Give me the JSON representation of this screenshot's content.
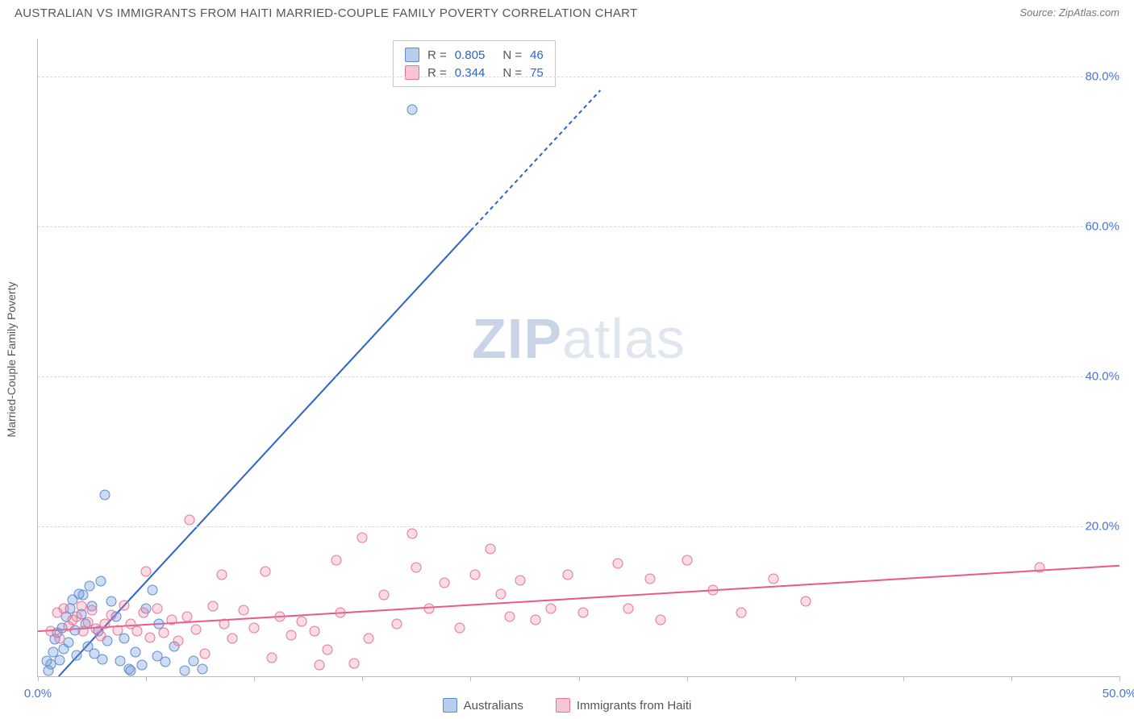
{
  "header": {
    "title": "AUSTRALIAN VS IMMIGRANTS FROM HAITI MARRIED-COUPLE FAMILY POVERTY CORRELATION CHART",
    "source": "Source: ZipAtlas.com"
  },
  "watermark": {
    "bold": "ZIP",
    "rest": "atlas"
  },
  "chart": {
    "type": "scatter",
    "xlim": [
      0,
      50
    ],
    "ylim": [
      0,
      85
    ],
    "xticks": [
      0,
      5,
      10,
      15,
      20,
      25,
      30,
      35,
      40,
      45,
      50
    ],
    "xtick_labels": {
      "0": "0.0%",
      "50": "50.0%"
    },
    "yticks": [
      20,
      40,
      60,
      80
    ],
    "ytick_labels": {
      "20": "20.0%",
      "40": "40.0%",
      "60": "60.0%",
      "80": "80.0%"
    },
    "ylabel": "Married-Couple Family Poverty",
    "background_color": "#ffffff",
    "grid_color": "#d8d8d8",
    "axis_color": "#bbbbbb",
    "marker_radius": 6.5,
    "series": [
      {
        "name": "Australians",
        "color_fill": "rgba(112,156,219,0.35)",
        "color_stroke": "#5e8bd0",
        "css": "blue",
        "R": "0.805",
        "N": "46",
        "trend": {
          "slope": 3.12,
          "intercept": -3.0,
          "color": "#2e63c8",
          "width": 2,
          "dash_after_x": 20,
          "extend_to_x": 26
        },
        "points": [
          [
            0.4,
            2.0
          ],
          [
            0.5,
            0.8
          ],
          [
            0.6,
            1.6
          ],
          [
            0.7,
            3.2
          ],
          [
            0.8,
            4.9
          ],
          [
            0.9,
            5.8
          ],
          [
            1.0,
            2.2
          ],
          [
            1.1,
            6.5
          ],
          [
            1.2,
            3.7
          ],
          [
            1.3,
            8.0
          ],
          [
            1.4,
            4.5
          ],
          [
            1.5,
            9.0
          ],
          [
            1.6,
            10.2
          ],
          [
            1.7,
            6.1
          ],
          [
            1.8,
            2.8
          ],
          [
            1.9,
            11.0
          ],
          [
            2.0,
            8.3
          ],
          [
            2.1,
            10.8
          ],
          [
            2.2,
            7.0
          ],
          [
            2.3,
            4.0
          ],
          [
            2.4,
            12.0
          ],
          [
            2.5,
            9.3
          ],
          [
            2.6,
            3.0
          ],
          [
            2.8,
            6.0
          ],
          [
            2.9,
            12.7
          ],
          [
            3.0,
            2.3
          ],
          [
            3.2,
            4.7
          ],
          [
            3.4,
            10.0
          ],
          [
            3.6,
            8.0
          ],
          [
            3.8,
            2.0
          ],
          [
            4.0,
            5.0
          ],
          [
            4.2,
            1.0
          ],
          [
            4.5,
            3.2
          ],
          [
            4.8,
            1.5
          ],
          [
            5.0,
            9.0
          ],
          [
            5.3,
            11.5
          ],
          [
            5.6,
            7.0
          ],
          [
            5.9,
            1.9
          ],
          [
            6.3,
            4.0
          ],
          [
            6.8,
            0.8
          ],
          [
            7.2,
            2.0
          ],
          [
            7.6,
            1.0
          ],
          [
            3.1,
            24.2
          ],
          [
            4.3,
            0.7
          ],
          [
            5.5,
            2.7
          ],
          [
            17.3,
            75.5
          ]
        ]
      },
      {
        "name": "Immigrants from Haiti",
        "color_fill": "rgba(236,128,161,0.28)",
        "color_stroke": "#e67399",
        "css": "pink",
        "R": "0.344",
        "N": "75",
        "trend": {
          "slope": 0.175,
          "intercept": 6.0,
          "color": "#e85b89",
          "width": 2,
          "dash_after_x": 50,
          "extend_to_x": 50
        },
        "points": [
          [
            0.6,
            6.0
          ],
          [
            0.9,
            8.5
          ],
          [
            1.0,
            5.0
          ],
          [
            1.2,
            9.0
          ],
          [
            1.4,
            6.7
          ],
          [
            1.6,
            7.5
          ],
          [
            1.8,
            8.0
          ],
          [
            2.0,
            9.3
          ],
          [
            2.1,
            6.0
          ],
          [
            2.3,
            7.2
          ],
          [
            2.5,
            8.8
          ],
          [
            2.7,
            6.3
          ],
          [
            2.9,
            5.4
          ],
          [
            3.1,
            7.0
          ],
          [
            3.4,
            8.2
          ],
          [
            3.7,
            6.1
          ],
          [
            4.0,
            9.5
          ],
          [
            4.3,
            7.0
          ],
          [
            4.6,
            6.0
          ],
          [
            4.9,
            8.5
          ],
          [
            5.2,
            5.2
          ],
          [
            5.5,
            9.0
          ],
          [
            5.8,
            5.8
          ],
          [
            6.2,
            7.5
          ],
          [
            6.5,
            4.7
          ],
          [
            6.9,
            8.0
          ],
          [
            7.3,
            6.2
          ],
          [
            7.7,
            3.0
          ],
          [
            8.1,
            9.3
          ],
          [
            8.6,
            7.0
          ],
          [
            9.0,
            5.0
          ],
          [
            9.5,
            8.8
          ],
          [
            10.0,
            6.5
          ],
          [
            10.5,
            14.0
          ],
          [
            10.8,
            2.5
          ],
          [
            11.2,
            8.0
          ],
          [
            11.7,
            5.5
          ],
          [
            12.2,
            7.3
          ],
          [
            12.8,
            6.0
          ],
          [
            13.4,
            3.5
          ],
          [
            13.8,
            15.5
          ],
          [
            14.0,
            8.5
          ],
          [
            14.6,
            1.7
          ],
          [
            15.0,
            18.5
          ],
          [
            15.3,
            5.0
          ],
          [
            16.0,
            10.8
          ],
          [
            16.6,
            7.0
          ],
          [
            17.3,
            19.0
          ],
          [
            17.5,
            14.5
          ],
          [
            18.1,
            9.0
          ],
          [
            18.8,
            12.5
          ],
          [
            19.5,
            6.5
          ],
          [
            20.2,
            13.5
          ],
          [
            20.9,
            17.0
          ],
          [
            21.4,
            11.0
          ],
          [
            21.8,
            8.0
          ],
          [
            22.3,
            12.8
          ],
          [
            23.0,
            7.5
          ],
          [
            23.7,
            9.0
          ],
          [
            24.5,
            13.5
          ],
          [
            25.2,
            8.5
          ],
          [
            26.8,
            15.0
          ],
          [
            27.3,
            9.0
          ],
          [
            28.3,
            13.0
          ],
          [
            28.8,
            7.5
          ],
          [
            30.0,
            15.5
          ],
          [
            31.2,
            11.5
          ],
          [
            32.5,
            8.5
          ],
          [
            34.0,
            13.0
          ],
          [
            35.5,
            10.0
          ],
          [
            7.0,
            20.8
          ],
          [
            8.5,
            13.5
          ],
          [
            5.0,
            14.0
          ],
          [
            46.3,
            14.5
          ],
          [
            13.0,
            1.5
          ]
        ]
      }
    ]
  },
  "legend": {
    "items": [
      {
        "swatch": "blue",
        "label": "Australians"
      },
      {
        "swatch": "pink",
        "label": "Immigrants from Haiti"
      }
    ]
  }
}
